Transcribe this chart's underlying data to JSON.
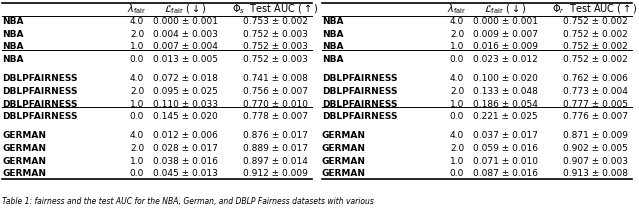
{
  "left_table": {
    "col_header": [
      "",
      "λ_fair",
      "ℒ_fair (↓)",
      "Φ_s  Test AUC (↑)"
    ],
    "rows": [
      [
        "NBA",
        "4.0",
        "0.000 ± 0.001",
        "0.753 ± 0.002"
      ],
      [
        "NBA",
        "2.0",
        "0.004 ± 0.003",
        "0.752 ± 0.003"
      ],
      [
        "NBA",
        "1.0",
        "0.007 ± 0.004",
        "0.752 ± 0.003"
      ],
      [
        "NBA",
        "0.0",
        "0.013 ± 0.005",
        "0.752 ± 0.003"
      ],
      [
        "DBLPFAIRNESS",
        "4.0",
        "0.072 ± 0.018",
        "0.741 ± 0.008"
      ],
      [
        "DBLPFAIRNESS",
        "2.0",
        "0.095 ± 0.025",
        "0.756 ± 0.007"
      ],
      [
        "DBLPFAIRNESS",
        "1.0",
        "0.110 ± 0.033",
        "0.770 ± 0.010"
      ],
      [
        "DBLPFAIRNESS",
        "0.0",
        "0.145 ± 0.020",
        "0.778 ± 0.007"
      ],
      [
        "GERMAN",
        "4.0",
        "0.012 ± 0.006",
        "0.876 ± 0.017"
      ],
      [
        "GERMAN",
        "2.0",
        "0.028 ± 0.017",
        "0.889 ± 0.017"
      ],
      [
        "GERMAN",
        "1.0",
        "0.038 ± 0.016",
        "0.897 ± 0.014"
      ],
      [
        "GERMAN",
        "0.0",
        "0.045 ± 0.013",
        "0.912 ± 0.009"
      ]
    ],
    "group_separators": [
      3,
      7
    ],
    "subscript": "s"
  },
  "right_table": {
    "col_header": [
      "",
      "λ_fair",
      "ℒ_fair (↓)",
      "Φ_r  Test AUC (↑)"
    ],
    "rows": [
      [
        "NBA",
        "4.0",
        "0.000 ± 0.001",
        "0.752 ± 0.002"
      ],
      [
        "NBA",
        "2.0",
        "0.009 ± 0.007",
        "0.752 ± 0.002"
      ],
      [
        "NBA",
        "1.0",
        "0.016 ± 0.009",
        "0.752 ± 0.002"
      ],
      [
        "NBA",
        "0.0",
        "0.023 ± 0.012",
        "0.752 ± 0.002"
      ],
      [
        "DBLPFAIRNESS",
        "4.0",
        "0.100 ± 0.020",
        "0.762 ± 0.006"
      ],
      [
        "DBLPFAIRNESS",
        "2.0",
        "0.133 ± 0.048",
        "0.773 ± 0.004"
      ],
      [
        "DBLPFAIRNESS",
        "1.0",
        "0.186 ± 0.054",
        "0.777 ± 0.005"
      ],
      [
        "DBLPFAIRNESS",
        "0.0",
        "0.221 ± 0.025",
        "0.776 ± 0.007"
      ],
      [
        "GERMAN",
        "4.0",
        "0.037 ± 0.017",
        "0.871 ± 0.009"
      ],
      [
        "GERMAN",
        "2.0",
        "0.059 ± 0.016",
        "0.902 ± 0.005"
      ],
      [
        "GERMAN",
        "1.0",
        "0.071 ± 0.010",
        "0.907 ± 0.003"
      ],
      [
        "GERMAN",
        "0.0",
        "0.087 ± 0.016",
        "0.913 ± 0.008"
      ]
    ],
    "group_separators": [
      3,
      7
    ],
    "subscript": "r"
  },
  "caption": "Table 1: fairness and the test AUC for the NBA, German, and DBLP Fairness datasets with various",
  "bg_color": "#ffffff",
  "font_size": 6.5
}
